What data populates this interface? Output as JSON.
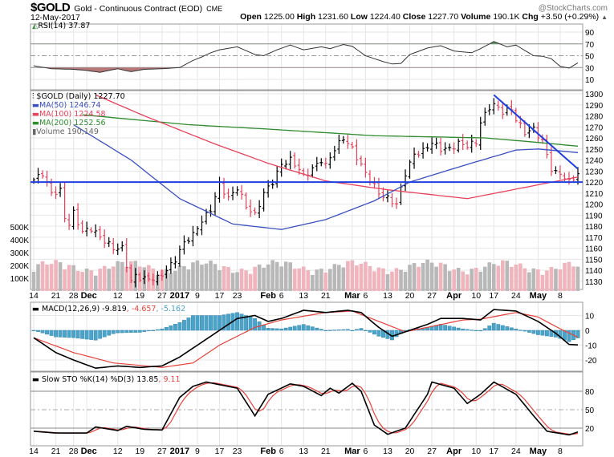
{
  "header": {
    "symbol": "$GOLD",
    "name": "Gold - Continuous Contract (EOD)",
    "exchange": "CME",
    "brand": "@StockCharts.com",
    "date": "12-May-2017",
    "open_label": "Open",
    "open": "1225.00",
    "high_label": "High",
    "high": "1231.60",
    "low_label": "Low",
    "low": "1224.40",
    "close_label": "Close",
    "close": "1227.70",
    "volume_label": "Volume",
    "volume": "190.1K",
    "chg_label": "Chg",
    "chg": "+3.50 (+0.29%)",
    "chg_arrow": "▲"
  },
  "legends": {
    "rsi": "RSI(14) 37.87",
    "price": "$GOLD (Daily) 1227.70",
    "ma50": "MA(50) 1246.74",
    "ma100": "MA(100) 1224.58",
    "ma200": "MA(200) 1252.56",
    "volume": "Volume 190,149",
    "macd_name": "MACD(12,26,9) -9.819",
    "macd_signal": ", -4.657",
    "macd_hist": ", -5.162",
    "sto_name": "Slow STO %K(14) %D(3) 13.85",
    "sto_d": ", 9.11"
  },
  "colors": {
    "up": "#000000",
    "down": "#e8415a",
    "ma50": "#3a4fc0",
    "ma100": "#e8415a",
    "ma200": "#2e8b2e",
    "line_blue": "#1f3fe0",
    "hist": "#4aa3c8",
    "vol_up": "#b8b8b8",
    "vol_down": "#f0b4bd"
  },
  "chart_data": {
    "type": "line",
    "title": "$GOLD Gold - Continuous Contract (EOD) CME",
    "x_ticks": [
      {
        "label": "14",
        "date": "2016-11-14"
      },
      {
        "label": "21",
        "date": "2016-11-21"
      },
      {
        "label": "28",
        "date": "2016-11-28"
      },
      {
        "label": "Dec",
        "date": "2016-12-01",
        "bold": true
      },
      {
        "label": "12",
        "date": "2016-12-12"
      },
      {
        "label": "19",
        "date": "2016-12-19"
      },
      {
        "label": "27",
        "date": "2016-12-27"
      },
      {
        "label": "2017",
        "date": "2017-01-03",
        "bold": true
      },
      {
        "label": "9",
        "date": "2017-01-09"
      },
      {
        "label": "17",
        "date": "2017-01-17"
      },
      {
        "label": "23",
        "date": "2017-01-23"
      },
      {
        "label": "Feb",
        "date": "2017-02-01",
        "bold": true
      },
      {
        "label": "6",
        "date": "2017-02-06"
      },
      {
        "label": "13",
        "date": "2017-02-13"
      },
      {
        "label": "21",
        "date": "2017-02-21"
      },
      {
        "label": "Mar",
        "date": "2017-03-01",
        "bold": true
      },
      {
        "label": "6",
        "date": "2017-03-06"
      },
      {
        "label": "13",
        "date": "2017-03-13"
      },
      {
        "label": "20",
        "date": "2017-03-20"
      },
      {
        "label": "27",
        "date": "2017-03-27"
      },
      {
        "label": "Apr",
        "date": "2017-04-03",
        "bold": true
      },
      {
        "label": "10",
        "date": "2017-04-10"
      },
      {
        "label": "17",
        "date": "2017-04-17"
      },
      {
        "label": "24",
        "date": "2017-04-24"
      },
      {
        "label": "May",
        "date": "2017-05-01",
        "bold": true
      },
      {
        "label": "8",
        "date": "2017-05-08"
      }
    ],
    "price": {
      "ylim": [
        1125,
        1305
      ],
      "yticks": [
        1130,
        1140,
        1150,
        1160,
        1170,
        1180,
        1190,
        1200,
        1210,
        1220,
        1230,
        1240,
        1250,
        1260,
        1270,
        1280,
        1290,
        1300
      ],
      "close": [
        [
          "2016-11-14",
          1222
        ],
        [
          "2016-11-16",
          1228
        ],
        [
          "2016-11-18",
          1210
        ],
        [
          "2016-11-22",
          1212
        ],
        [
          "2016-11-23",
          1188
        ],
        [
          "2016-11-25",
          1182
        ],
        [
          "2016-11-28",
          1192
        ],
        [
          "2016-11-30",
          1175
        ],
        [
          "2016-12-02",
          1178
        ],
        [
          "2016-12-06",
          1170
        ],
        [
          "2016-12-09",
          1160
        ],
        [
          "2016-12-13",
          1160
        ],
        [
          "2016-12-15",
          1130
        ],
        [
          "2016-12-16",
          1135
        ],
        [
          "2016-12-20",
          1132
        ],
        [
          "2016-12-23",
          1133
        ],
        [
          "2016-12-28",
          1140
        ],
        [
          "2016-12-30",
          1150
        ],
        [
          "2017-01-04",
          1165
        ],
        [
          "2017-01-06",
          1172
        ],
        [
          "2017-01-10",
          1185
        ],
        [
          "2017-01-12",
          1195
        ],
        [
          "2017-01-17",
          1218
        ],
        [
          "2017-01-19",
          1205
        ],
        [
          "2017-01-23",
          1215
        ],
        [
          "2017-01-25",
          1198
        ],
        [
          "2017-01-27",
          1190
        ],
        [
          "2017-01-31",
          1210
        ],
        [
          "2017-02-02",
          1220
        ],
        [
          "2017-02-06",
          1236
        ],
        [
          "2017-02-08",
          1240
        ],
        [
          "2017-02-10",
          1232
        ],
        [
          "2017-02-13",
          1225
        ],
        [
          "2017-02-15",
          1232
        ],
        [
          "2017-02-17",
          1240
        ],
        [
          "2017-02-21",
          1235
        ],
        [
          "2017-02-23",
          1250
        ],
        [
          "2017-02-27",
          1260
        ],
        [
          "2017-03-01",
          1250
        ],
        [
          "2017-03-03",
          1235
        ],
        [
          "2017-03-06",
          1228
        ],
        [
          "2017-03-09",
          1210
        ],
        [
          "2017-03-13",
          1205
        ],
        [
          "2017-03-15",
          1200
        ],
        [
          "2017-03-17",
          1228
        ],
        [
          "2017-03-21",
          1245
        ],
        [
          "2017-03-23",
          1248
        ],
        [
          "2017-03-27",
          1256
        ],
        [
          "2017-03-29",
          1250
        ],
        [
          "2017-03-31",
          1250
        ],
        [
          "2017-04-04",
          1255
        ],
        [
          "2017-04-06",
          1253
        ],
        [
          "2017-04-10",
          1256
        ],
        [
          "2017-04-11",
          1274
        ],
        [
          "2017-04-13",
          1288
        ],
        [
          "2017-04-17",
          1290
        ],
        [
          "2017-04-19",
          1284
        ],
        [
          "2017-04-21",
          1286
        ],
        [
          "2017-04-24",
          1277
        ],
        [
          "2017-04-26",
          1265
        ],
        [
          "2017-04-28",
          1268
        ],
        [
          "2017-05-02",
          1257
        ],
        [
          "2017-05-04",
          1232
        ],
        [
          "2017-05-05",
          1228
        ],
        [
          "2017-05-08",
          1228
        ],
        [
          "2017-05-10",
          1220
        ],
        [
          "2017-05-11",
          1224
        ],
        [
          "2017-05-12",
          1227.7
        ]
      ],
      "ma50": [
        [
          "2016-11-28",
          1272
        ],
        [
          "2016-12-15",
          1240
        ],
        [
          "2017-01-03",
          1205
        ],
        [
          "2017-01-20",
          1182
        ],
        [
          "2017-02-06",
          1177
        ],
        [
          "2017-02-21",
          1186
        ],
        [
          "2017-03-08",
          1203
        ],
        [
          "2017-03-20",
          1220
        ],
        [
          "2017-04-06",
          1236
        ],
        [
          "2017-04-24",
          1249
        ],
        [
          "2017-05-01",
          1250
        ],
        [
          "2017-05-12",
          1246.74
        ]
      ],
      "ma100": [
        [
          "2016-12-05",
          1299
        ],
        [
          "2016-12-20",
          1280
        ],
        [
          "2017-01-12",
          1256
        ],
        [
          "2017-02-01",
          1237
        ],
        [
          "2017-02-21",
          1221
        ],
        [
          "2017-03-13",
          1213
        ],
        [
          "2017-04-06",
          1205
        ],
        [
          "2017-04-20",
          1212
        ],
        [
          "2017-05-12",
          1224.58
        ]
      ],
      "ma200": [
        [
          "2016-11-30",
          1281
        ],
        [
          "2017-01-05",
          1272
        ],
        [
          "2017-02-01",
          1268
        ],
        [
          "2017-03-08",
          1262
        ],
        [
          "2017-04-12",
          1260
        ],
        [
          "2017-04-26",
          1257
        ],
        [
          "2017-05-12",
          1252.56
        ]
      ],
      "support": 1220,
      "trendline": [
        [
          "2017-04-17",
          1299
        ],
        [
          "2017-05-12",
          1232
        ]
      ]
    },
    "volume": {
      "yticks": [
        {
          "label": "100K",
          "value": 100000
        },
        {
          "label": "200K",
          "value": 200000
        },
        {
          "label": "300K",
          "value": 300000
        },
        {
          "label": "400K",
          "value": 400000
        },
        {
          "label": "500K",
          "value": 500000
        }
      ],
      "last": 190149
    },
    "rsi": {
      "ylim": [
        0,
        100
      ],
      "yticks": [
        10,
        30,
        50,
        70,
        90
      ],
      "overbought": 70,
      "oversold": 30,
      "values": [
        [
          "2016-11-14",
          33
        ],
        [
          "2016-11-18",
          28
        ],
        [
          "2016-11-28",
          27
        ],
        [
          "2016-12-01",
          25
        ],
        [
          "2016-12-06",
          22
        ],
        [
          "2016-12-12",
          28
        ],
        [
          "2016-12-15",
          23
        ],
        [
          "2016-12-20",
          27
        ],
        [
          "2016-12-27",
          28
        ],
        [
          "2017-01-03",
          30
        ],
        [
          "2017-01-06",
          42
        ],
        [
          "2017-01-10",
          48
        ],
        [
          "2017-01-12",
          55
        ],
        [
          "2017-01-17",
          60
        ],
        [
          "2017-01-23",
          65
        ],
        [
          "2017-01-27",
          52
        ],
        [
          "2017-01-31",
          50
        ],
        [
          "2017-02-03",
          60
        ],
        [
          "2017-02-08",
          68
        ],
        [
          "2017-02-13",
          60
        ],
        [
          "2017-02-17",
          65
        ],
        [
          "2017-02-22",
          62
        ],
        [
          "2017-02-27",
          69
        ],
        [
          "2017-03-01",
          66
        ],
        [
          "2017-03-06",
          50
        ],
        [
          "2017-03-10",
          40
        ],
        [
          "2017-03-14",
          36
        ],
        [
          "2017-03-16",
          37
        ],
        [
          "2017-03-20",
          52
        ],
        [
          "2017-03-24",
          63
        ],
        [
          "2017-03-29",
          67
        ],
        [
          "2017-04-03",
          58
        ],
        [
          "2017-04-07",
          55
        ],
        [
          "2017-04-11",
          62
        ],
        [
          "2017-04-13",
          70
        ],
        [
          "2017-04-17",
          74
        ],
        [
          "2017-04-20",
          65
        ],
        [
          "2017-04-24",
          68
        ],
        [
          "2017-04-28",
          50
        ],
        [
          "2017-05-02",
          49
        ],
        [
          "2017-05-04",
          45
        ],
        [
          "2017-05-08",
          32
        ],
        [
          "2017-05-10",
          29
        ],
        [
          "2017-05-12",
          37.87
        ]
      ]
    },
    "macd": {
      "yticks": [
        10,
        0,
        -10,
        -20
      ],
      "macd": [
        [
          "2016-11-14",
          -5
        ],
        [
          "2016-11-21",
          -15
        ],
        [
          "2016-11-28",
          -20
        ],
        [
          "2016-12-05",
          -25.5
        ],
        [
          "2016-12-12",
          -24
        ],
        [
          "2016-12-19",
          -25
        ],
        [
          "2016-12-27",
          -24
        ],
        [
          "2017-01-03",
          -18
        ],
        [
          "2017-01-09",
          -10
        ],
        [
          "2017-01-17",
          0
        ],
        [
          "2017-01-23",
          8
        ],
        [
          "2017-01-27",
          10
        ],
        [
          "2017-02-01",
          6
        ],
        [
          "2017-02-06",
          8
        ],
        [
          "2017-02-13",
          13.5
        ],
        [
          "2017-02-21",
          12
        ],
        [
          "2017-02-28",
          13.5
        ],
        [
          "2017-03-03",
          12
        ],
        [
          "2017-03-09",
          2
        ],
        [
          "2017-03-14",
          -4
        ],
        [
          "2017-03-20",
          0
        ],
        [
          "2017-03-24",
          4
        ],
        [
          "2017-03-29",
          8
        ],
        [
          "2017-04-05",
          8
        ],
        [
          "2017-04-11",
          7
        ],
        [
          "2017-04-17",
          14
        ],
        [
          "2017-04-24",
          13
        ],
        [
          "2017-05-01",
          6
        ],
        [
          "2017-05-05",
          -2
        ],
        [
          "2017-05-10",
          -9.5
        ],
        [
          "2017-05-12",
          -9.819
        ]
      ],
      "signal": [
        [
          "2016-11-14",
          -5
        ],
        [
          "2016-11-28",
          -15
        ],
        [
          "2016-12-09",
          -22
        ],
        [
          "2016-12-27",
          -25
        ],
        [
          "2017-01-06",
          -22
        ],
        [
          "2017-01-17",
          -10
        ],
        [
          "2017-01-27",
          2
        ],
        [
          "2017-02-06",
          7
        ],
        [
          "2017-02-21",
          12
        ],
        [
          "2017-03-01",
          13
        ],
        [
          "2017-03-09",
          6
        ],
        [
          "2017-03-17",
          -1
        ],
        [
          "2017-03-24",
          2
        ],
        [
          "2017-04-05",
          7
        ],
        [
          "2017-04-11",
          7.5
        ],
        [
          "2017-04-24",
          12
        ],
        [
          "2017-05-01",
          9
        ],
        [
          "2017-05-08",
          1
        ],
        [
          "2017-05-12",
          -4.657
        ]
      ]
    },
    "sto": {
      "ylim": [
        0,
        100
      ],
      "yticks": [
        20,
        50,
        80
      ],
      "k": [
        [
          "2016-11-14",
          15
        ],
        [
          "2016-11-21",
          12
        ],
        [
          "2016-12-01",
          12
        ],
        [
          "2016-12-05",
          22
        ],
        [
          "2016-12-12",
          16
        ],
        [
          "2016-12-14",
          23
        ],
        [
          "2016-12-20",
          18
        ],
        [
          "2016-12-27",
          17
        ],
        [
          "2017-01-03",
          70
        ],
        [
          "2017-01-06",
          88
        ],
        [
          "2017-01-11",
          95
        ],
        [
          "2017-01-23",
          85
        ],
        [
          "2017-01-27",
          40
        ],
        [
          "2017-02-01",
          75
        ],
        [
          "2017-02-08",
          92
        ],
        [
          "2017-02-13",
          88
        ],
        [
          "2017-02-17",
          73
        ],
        [
          "2017-02-22",
          85
        ],
        [
          "2017-02-24",
          77
        ],
        [
          "2017-03-01",
          93
        ],
        [
          "2017-03-03",
          80
        ],
        [
          "2017-03-08",
          25
        ],
        [
          "2017-03-13",
          10
        ],
        [
          "2017-03-17",
          20
        ],
        [
          "2017-03-24",
          75
        ],
        [
          "2017-03-27",
          95
        ],
        [
          "2017-04-03",
          85
        ],
        [
          "2017-04-06",
          60
        ],
        [
          "2017-04-11",
          75
        ],
        [
          "2017-04-17",
          95
        ],
        [
          "2017-04-24",
          75
        ],
        [
          "2017-04-28",
          40
        ],
        [
          "2017-05-03",
          15
        ],
        [
          "2017-05-10",
          9
        ],
        [
          "2017-05-12",
          13.85
        ]
      ]
    }
  }
}
